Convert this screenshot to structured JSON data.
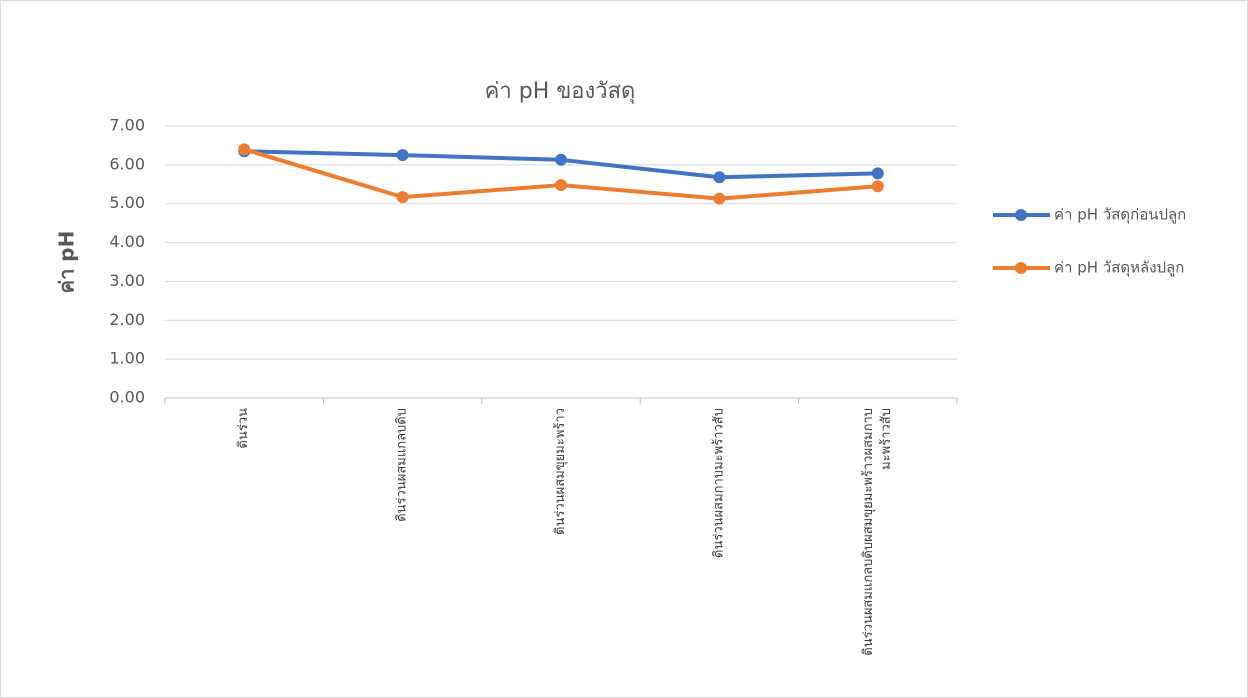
{
  "chart_data": {
    "type": "line",
    "title": "ค่า pH ของวัสดุ",
    "y_label": "ค่า pH",
    "categories": [
      "ดินร่วน",
      "ดินร่วนผสมแกลบดิบ",
      "ดินร่วนผสมขุยมะพร้าว",
      "ดินร่วนผสมกาบมะพร้าวสับ",
      "ดินร่วนผสมแกลบดิบผสมขุยมะพร้าวผสมกาบมะพร้าวสับ"
    ],
    "series": [
      {
        "name": "ค่า pH วัสดุก่อนปลูก",
        "color": "#4472c4",
        "values": [
          6.35,
          6.25,
          6.13,
          5.68,
          5.78
        ]
      },
      {
        "name": "ค่า pH วัสดุหลังปลูก",
        "color": "#ed7d31",
        "values": [
          6.4,
          5.17,
          5.48,
          5.13,
          5.45
        ]
      }
    ],
    "ylim": [
      0,
      7
    ],
    "yticks": [
      {
        "value": 0,
        "label": "0.00"
      },
      {
        "value": 1,
        "label": "1.00"
      },
      {
        "value": 2,
        "label": "2.00"
      },
      {
        "value": 3,
        "label": "3.00"
      },
      {
        "value": 4,
        "label": "4.00"
      },
      {
        "value": 5,
        "label": "5.00"
      },
      {
        "value": 6,
        "label": "6.00"
      },
      {
        "value": 7,
        "label": "7.00"
      }
    ],
    "grid": true,
    "legend": "right"
  }
}
